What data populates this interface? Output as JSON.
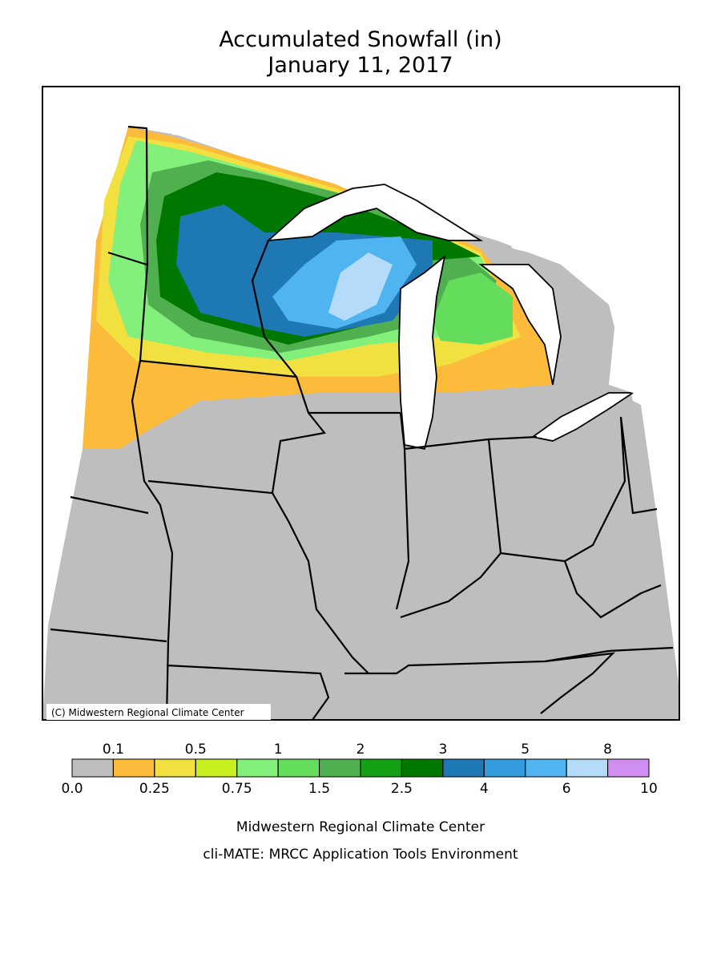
{
  "title": "Accumulated Snowfall (in)",
  "subtitle": "January 11, 2017",
  "copyright": "(C) Midwestern Regional Climate Center",
  "legend": {
    "colors": [
      "#bebebe",
      "#fdbb3c",
      "#f2e040",
      "#c8f020",
      "#84f07c",
      "#64dc5c",
      "#50b050",
      "#14a014",
      "#007800",
      "#1e78b4",
      "#329cdc",
      "#50b4f0",
      "#b4dcfa",
      "#d08ef0"
    ],
    "boundaries": [
      {
        "value": 0,
        "label": "0.0"
      },
      0.1,
      0.25,
      0.5,
      0.75,
      1,
      1.5,
      2,
      2.5,
      3,
      4,
      5,
      6,
      8,
      10
    ]
  },
  "footer": [
    "Midwestern Regional Climate Center",
    "cli-MATE: MRCC Application Tools Environment"
  ]
}
